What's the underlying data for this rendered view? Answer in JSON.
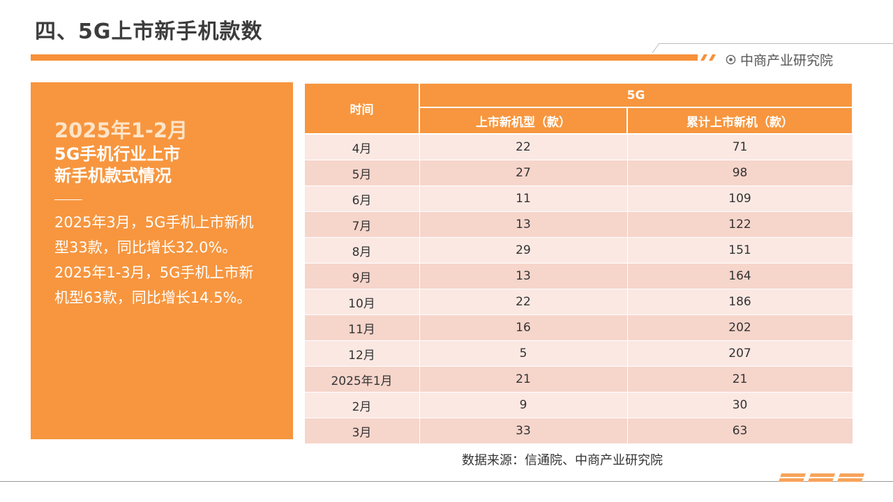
{
  "header": {
    "title": "四、5G上市新手机款数",
    "brand": "中商产业研究院",
    "accent_color": "#f7963f"
  },
  "summary": {
    "date": "2025年1-2月",
    "heading_line1": "5G手机行业上市",
    "heading_line2": "新手机款式情况",
    "paragraph_lines": [
      "2025年3月，5G手机上市新机",
      "型33款，同比增长32.0%。",
      "2025年1-3月，5G手机上市新",
      "机型63款，同比增长14.5%。"
    ]
  },
  "table": {
    "time_header": "时间",
    "group_header": "5G",
    "columns": [
      "上市新机型（款）",
      "累计上市新机（款）"
    ],
    "rows": [
      {
        "time": "4月",
        "new": "22",
        "cumulative": "71"
      },
      {
        "time": "5月",
        "new": "27",
        "cumulative": "98"
      },
      {
        "time": "6月",
        "new": "11",
        "cumulative": "109"
      },
      {
        "time": "7月",
        "new": "13",
        "cumulative": "122"
      },
      {
        "time": "8月",
        "new": "29",
        "cumulative": "151"
      },
      {
        "time": "9月",
        "new": "13",
        "cumulative": "164"
      },
      {
        "time": "10月",
        "new": "22",
        "cumulative": "186"
      },
      {
        "time": "11月",
        "new": "16",
        "cumulative": "202"
      },
      {
        "time": "12月",
        "new": "5",
        "cumulative": "207"
      },
      {
        "time": "2025年1月",
        "new": "21",
        "cumulative": "21"
      },
      {
        "time": "2月",
        "new": "9",
        "cumulative": "30"
      },
      {
        "time": "3月",
        "new": "33",
        "cumulative": "63"
      }
    ]
  },
  "footer": {
    "source": "数据来源：信通院、中商产业研究院"
  }
}
